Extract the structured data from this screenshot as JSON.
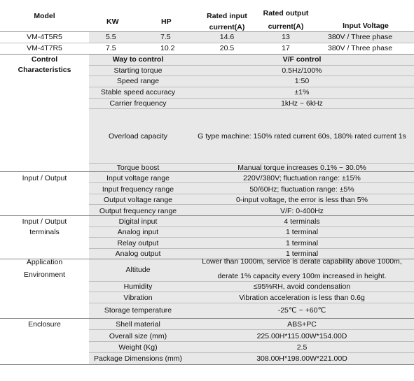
{
  "header": {
    "model": "Model",
    "kw": "KW",
    "hp": "HP",
    "rated_input_l1": "Rated input",
    "rated_input_l2": "current(A)",
    "rated_output_l1": "Rated output",
    "rated_output_l2": "current(A)",
    "input_voltage": "Input Voltage"
  },
  "models": [
    {
      "model": "VM-4T5R5",
      "kw": "5.5",
      "hp": "7.5",
      "input": "14.6",
      "output": "13",
      "voltage": "380V / Three phase"
    },
    {
      "model": "VM-4T7R5",
      "kw": "7.5",
      "hp": "10.2",
      "input": "20.5",
      "output": "17",
      "voltage": "380V / Three phase"
    }
  ],
  "sections": {
    "control_l1": "Control",
    "control_l2": "Characteristics",
    "io": "Input / Output",
    "io_terminals_l1": "Input / Output",
    "io_terminals_l2": "terminals",
    "application_l1": "Application",
    "application_l2": "Environment",
    "enclosure": "Enclosure"
  },
  "specs": {
    "way_to_control": {
      "label": "Way to control",
      "value": "V/F control"
    },
    "starting_torque": {
      "label": "Starting torque",
      "value": "0.5Hz/100%"
    },
    "speed_range": {
      "label": "Speed range",
      "value": "1:50"
    },
    "stable_speed": {
      "label": "Stable speed accuracy",
      "value": "±1%"
    },
    "carrier_freq": {
      "label": "Carrier frequency",
      "value": "1kHz ~ 6kHz"
    },
    "overload": {
      "label": "Overload capacity",
      "value": "G type machine: 150% rated current 60s, 180% rated current 1s"
    },
    "torque_boost": {
      "label": "Torque boost",
      "value": "Manual torque increases 0.1% ~ 30.0%"
    },
    "input_voltage_range": {
      "label": "Input voltage range",
      "value": "220V/380V; fluctuation range: ±15%"
    },
    "input_freq_range": {
      "label": "Input frequency range",
      "value": "50/60Hz; fluctuation range: ±5%"
    },
    "output_voltage_range": {
      "label": "Output voltage range",
      "value": "0-input voltage, the error is less than 5%"
    },
    "output_freq_range": {
      "label": "Output frequency range",
      "value": "V/F: 0-400Hz"
    },
    "digital_input": {
      "label": "Digital input",
      "value": "4 terminals"
    },
    "analog_input": {
      "label": "Analog input",
      "value": "1 terminal"
    },
    "relay_output": {
      "label": "Relay output",
      "value": "1 terminal"
    },
    "analog_output": {
      "label": "Analog output",
      "value": "1 terminal"
    },
    "altitude": {
      "label": "Altitude",
      "value_l1": "Lower than 1000m, service is derate capability above 1000m,",
      "value_l2": "derate 1% capacity every 100m increased in height."
    },
    "humidity": {
      "label": "Humidity",
      "value": "≤95%RH, avoid condensation"
    },
    "vibration": {
      "label": "Vibration",
      "value": "Vibration acceleration is less than 0.6g"
    },
    "storage_temp": {
      "label": "Storage temperature",
      "value": "-25℃ ~ +60℃"
    },
    "shell_material": {
      "label": "Shell material",
      "value": "ABS+PC"
    },
    "overall_size": {
      "label": "Overall size (mm)",
      "value": "225.00H*115.00W*154.00D"
    },
    "weight": {
      "label": "Weight (Kg)",
      "value": "2.5"
    },
    "package_dims": {
      "label": "Package Dimensions (mm)",
      "value": "308.00H*198.00W*221.00D"
    }
  }
}
